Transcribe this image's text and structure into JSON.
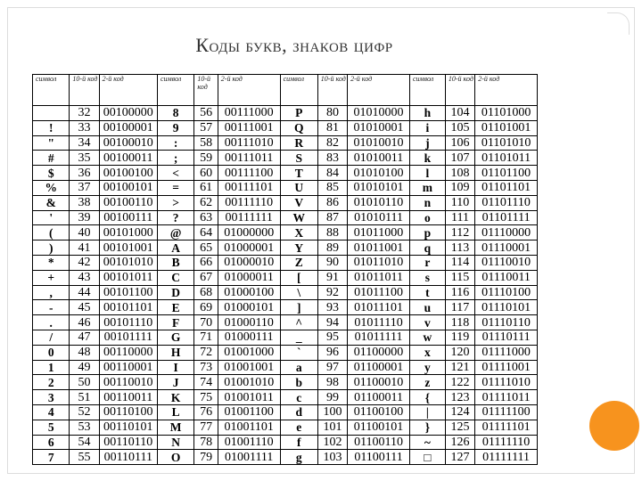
{
  "title": "Коды букв, знаков цифр",
  "headers": [
    "символ",
    "10-й код",
    "2-й код",
    "символ",
    "10-й код",
    "2-й код",
    "символ",
    "10-й код",
    "2-й код",
    "символ",
    "10-й код",
    "2-й код"
  ],
  "rows": [
    [
      " ",
      "32",
      "00100000",
      "8",
      "56",
      "00111000",
      "P",
      "80",
      "01010000",
      "h",
      "104",
      "01101000"
    ],
    [
      "!",
      "33",
      "00100001",
      "9",
      "57",
      "00111001",
      "Q",
      "81",
      "01010001",
      "i",
      "105",
      "01101001"
    ],
    [
      "\"",
      "34",
      "00100010",
      ":",
      "58",
      "00111010",
      "R",
      "82",
      "01010010",
      "j",
      "106",
      "01101010"
    ],
    [
      "#",
      "35",
      "00100011",
      ";",
      "59",
      "00111011",
      "S",
      "83",
      "01010011",
      "k",
      "107",
      "01101011"
    ],
    [
      "$",
      "36",
      "00100100",
      "<",
      "60",
      "00111100",
      "T",
      "84",
      "01010100",
      "l",
      "108",
      "01101100"
    ],
    [
      "%",
      "37",
      "00100101",
      "=",
      "61",
      "00111101",
      "U",
      "85",
      "01010101",
      "m",
      "109",
      "01101101"
    ],
    [
      "&",
      "38",
      "00100110",
      ">",
      "62",
      "00111110",
      "V",
      "86",
      "01010110",
      "n",
      "110",
      "01101110"
    ],
    [
      "'",
      "39",
      "00100111",
      "?",
      "63",
      "00111111",
      "W",
      "87",
      "01010111",
      "o",
      "111",
      "01101111"
    ],
    [
      "(",
      "40",
      "00101000",
      "@",
      "64",
      "01000000",
      "X",
      "88",
      "01011000",
      "p",
      "112",
      "01110000"
    ],
    [
      ")",
      "41",
      "00101001",
      "A",
      "65",
      "01000001",
      "Y",
      "89",
      "01011001",
      "q",
      "113",
      "01110001"
    ],
    [
      "*",
      "42",
      "00101010",
      "B",
      "66",
      "01000010",
      "Z",
      "90",
      "01011010",
      "r",
      "114",
      "01110010"
    ],
    [
      "+",
      "43",
      "00101011",
      "C",
      "67",
      "01000011",
      "[",
      "91",
      "01011011",
      "s",
      "115",
      "01110011"
    ],
    [
      ",",
      "44",
      "00101100",
      "D",
      "68",
      "01000100",
      "\\",
      "92",
      "01011100",
      "t",
      "116",
      "01110100"
    ],
    [
      "-",
      "45",
      "00101101",
      "E",
      "69",
      "01000101",
      "]",
      "93",
      "01011101",
      "u",
      "117",
      "01110101"
    ],
    [
      ".",
      "46",
      "00101110",
      "F",
      "70",
      "01000110",
      "^",
      "94",
      "01011110",
      "v",
      "118",
      "01110110"
    ],
    [
      "/",
      "47",
      "00101111",
      "G",
      "71",
      "01000111",
      "_",
      "95",
      "01011111",
      "w",
      "119",
      "01110111"
    ],
    [
      "0",
      "48",
      "00110000",
      "H",
      "72",
      "01001000",
      "`",
      "96",
      "01100000",
      "x",
      "120",
      "01111000"
    ],
    [
      "1",
      "49",
      "00110001",
      "I",
      "73",
      "01001001",
      "a",
      "97",
      "01100001",
      "y",
      "121",
      "01111001"
    ],
    [
      "2",
      "50",
      "00110010",
      "J",
      "74",
      "01001010",
      "b",
      "98",
      "01100010",
      "z",
      "122",
      "01111010"
    ],
    [
      "3",
      "51",
      "00110011",
      "K",
      "75",
      "01001011",
      "c",
      "99",
      "01100011",
      "{",
      "123",
      "01111011"
    ],
    [
      "4",
      "52",
      "00110100",
      "L",
      "76",
      "01001100",
      "d",
      "100",
      "01100100",
      "|",
      "124",
      "01111100"
    ],
    [
      "5",
      "53",
      "00110101",
      "M",
      "77",
      "01001101",
      "e",
      "101",
      "01100101",
      "}",
      "125",
      "01111101"
    ],
    [
      "6",
      "54",
      "00110110",
      "N",
      "78",
      "01001110",
      "f",
      "102",
      "01100110",
      "~",
      "126",
      "01111110"
    ],
    [
      "7",
      "55",
      "00110111",
      "O",
      "79",
      "01001111",
      "g",
      "103",
      "01100111",
      "□",
      "127",
      "01111111"
    ]
  ],
  "colors": {
    "accent_circle": "#f7931e"
  }
}
